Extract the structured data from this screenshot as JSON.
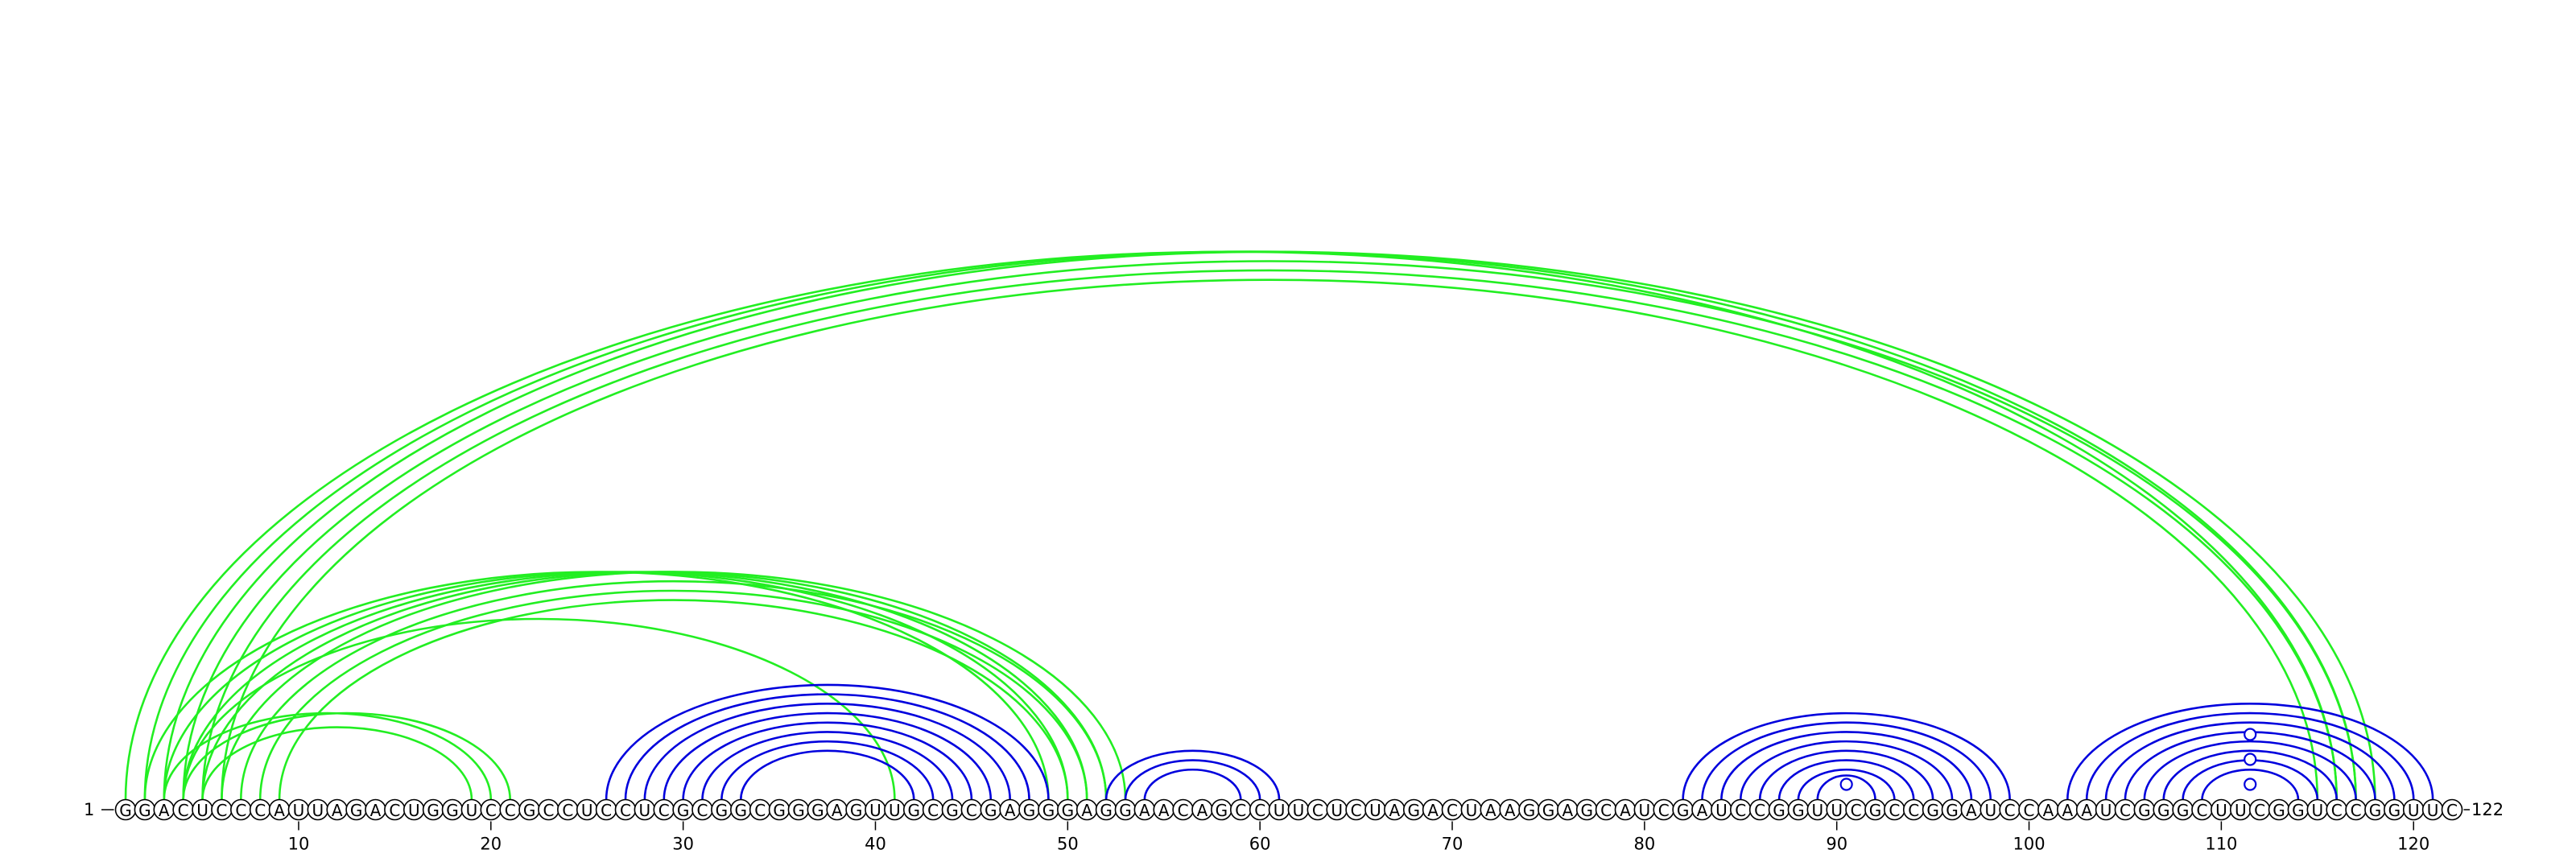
{
  "sequence": "GGACUCCCAUUAGACUGGUCCGCCUCCUCGCGGCGGGAGUUGCGCGAGGGAGGAACAGCCUUCUCUAGACUAAGGAGCAUCGAUCCGGUUCGCCGGAUCCAAAUCGGGCUUCGGUCCGGUUC",
  "start_label": "1",
  "end_label": "122",
  "ticks": [
    10,
    20,
    30,
    40,
    50,
    60,
    70,
    80,
    90,
    100,
    110,
    120
  ],
  "colors": {
    "blue": "#0000dd",
    "green": "#22ee22"
  },
  "arc_groups": [
    {
      "color": "green",
      "pairs": [
        [
          1,
          116
        ],
        [
          2,
          117
        ],
        [
          3,
          118
        ],
        [
          4,
          117
        ],
        [
          5,
          116
        ],
        [
          6,
          115
        ]
      ]
    },
    {
      "color": "green",
      "pairs": [
        [
          2,
          49
        ],
        [
          3,
          50
        ],
        [
          4,
          51
        ],
        [
          5,
          52
        ],
        [
          6,
          53
        ],
        [
          7,
          52
        ],
        [
          8,
          51
        ],
        [
          9,
          50
        ]
      ]
    },
    {
      "color": "green",
      "pairs": [
        [
          4,
          41
        ]
      ]
    },
    {
      "color": "green",
      "pairs": [
        [
          3,
          20
        ],
        [
          4,
          21
        ],
        [
          5,
          19
        ]
      ]
    },
    {
      "color": "blue",
      "pairs": [
        [
          26,
          49
        ],
        [
          27,
          48
        ],
        [
          28,
          47
        ],
        [
          29,
          46
        ],
        [
          30,
          45
        ],
        [
          31,
          44
        ],
        [
          32,
          43
        ],
        [
          33,
          42
        ]
      ]
    },
    {
      "color": "blue",
      "pairs": [
        [
          52,
          61
        ],
        [
          53,
          60
        ],
        [
          54,
          59
        ]
      ]
    },
    {
      "color": "blue",
      "pairs": [
        [
          82,
          99
        ],
        [
          83,
          98
        ],
        [
          84,
          97
        ],
        [
          85,
          96
        ],
        [
          86,
          95
        ],
        [
          87,
          94
        ],
        [
          88,
          93
        ],
        [
          89,
          92
        ]
      ]
    },
    {
      "color": "blue",
      "pairs": [
        [
          102,
          121
        ],
        [
          103,
          120
        ],
        [
          104,
          119
        ],
        [
          105,
          118
        ],
        [
          106,
          117
        ],
        [
          107,
          116
        ],
        [
          108,
          115
        ],
        [
          109,
          114
        ]
      ]
    }
  ],
  "unpaired_markers": [
    {
      "position": 90.5,
      "color": "blue"
    },
    {
      "position": 111.5,
      "color": "blue",
      "level": 1
    },
    {
      "position": 111.5,
      "color": "blue",
      "level": 2
    },
    {
      "position": 111.5,
      "color": "blue",
      "level": 3
    }
  ]
}
